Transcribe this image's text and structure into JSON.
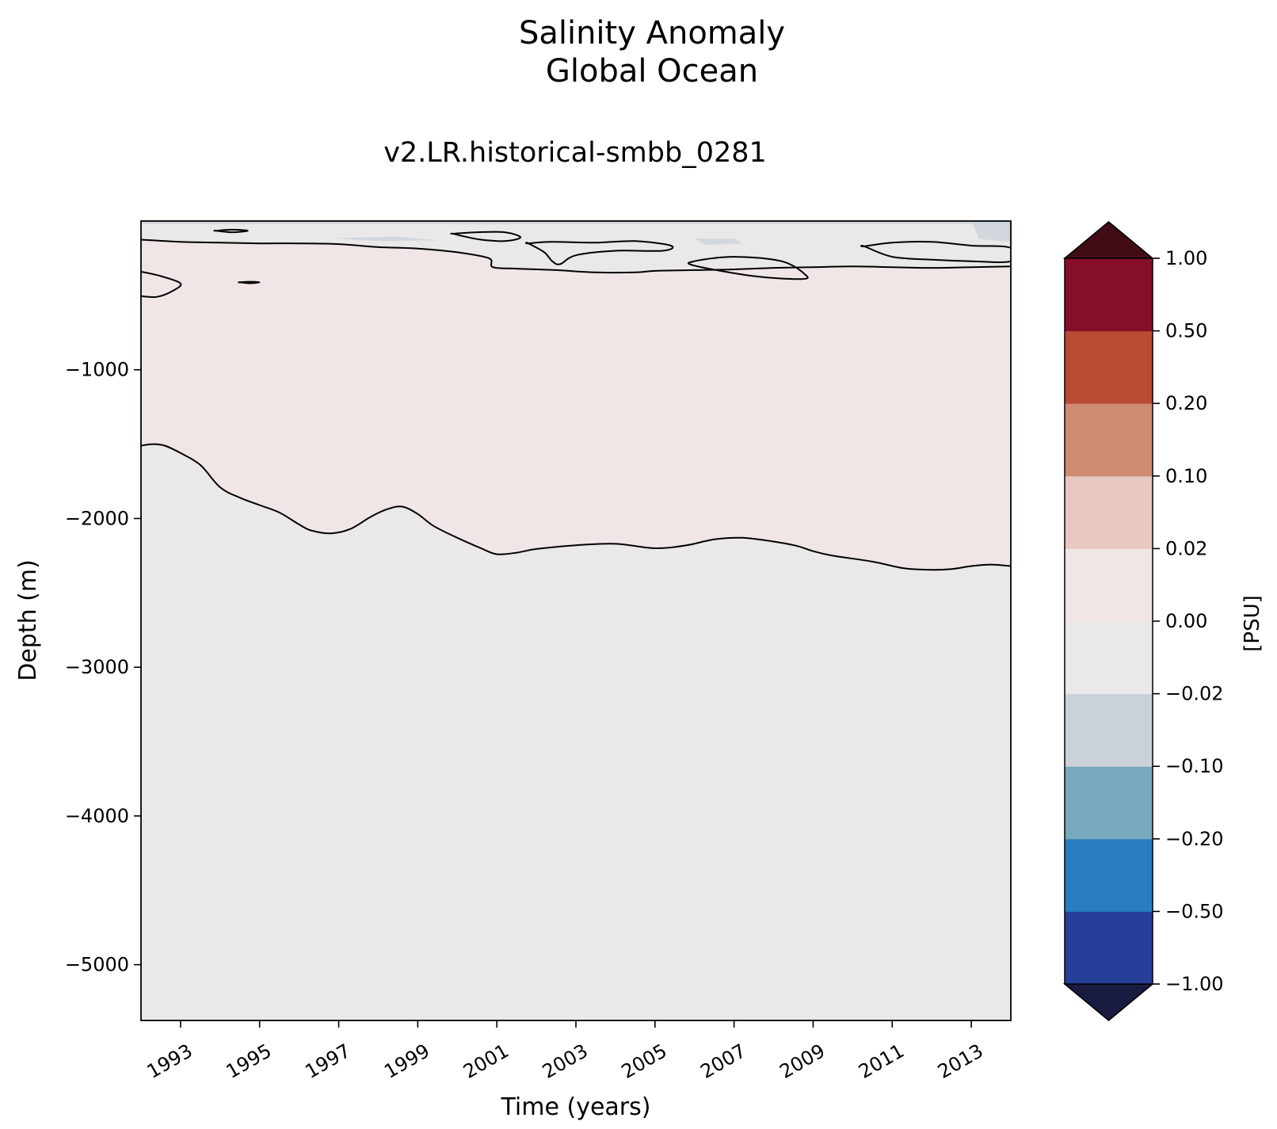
{
  "chart_data": {
    "type": "heatmap",
    "title_line1": "Salinity Anomaly",
    "title_line2": "Global Ocean",
    "subtitle": "v2.LR.historical-smbb_0281",
    "xlabel": "Time (years)",
    "ylabel": "Depth (m)",
    "xlim": [
      1992.0,
      2014.0
    ],
    "ylim": [
      -5375,
      0
    ],
    "x_ticks": [
      1993,
      1995,
      1997,
      1999,
      2001,
      2003,
      2005,
      2007,
      2009,
      2011,
      2013
    ],
    "x_tick_labels": [
      "1993",
      "1995",
      "1997",
      "1999",
      "2001",
      "2003",
      "2005",
      "2007",
      "2009",
      "2011",
      "2013"
    ],
    "y_ticks": [
      -1000,
      -2000,
      -3000,
      -4000,
      -5000
    ],
    "y_tick_labels": [
      "−1000",
      "−2000",
      "−3000",
      "−4000",
      "−5000"
    ],
    "colorbar": {
      "label": "[PSU]",
      "levels": [
        -1.0,
        -0.5,
        -0.2,
        -0.1,
        -0.02,
        0.0,
        0.02,
        0.1,
        0.2,
        0.5,
        1.0
      ],
      "tick_labels": [
        "−1.00",
        "−0.50",
        "−0.20",
        "−0.10",
        "−0.02",
        "0.00",
        "0.02",
        "0.10",
        "0.20",
        "0.50",
        "1.00"
      ],
      "colors": [
        "#283f9a",
        "#277dbd",
        "#77a9bf",
        "#cad2d9",
        "#eae8e9",
        "#f0e6e5",
        "#e7c9c2",
        "#d08c73",
        "#b84b32",
        "#860e28"
      ],
      "under_color": "#1a1b40",
      "over_color": "#420c16"
    },
    "regions": {
      "positive_band_color": "#f0e6e5",
      "negative_color": "#eae8e9",
      "near_surface_negative_color": "#cad2d9"
    },
    "zero_contour_lower": {
      "x": [
        1992.0,
        1992.3,
        1992.6,
        1993.0,
        1993.5,
        1994.0,
        1994.5,
        1995.0,
        1995.5,
        1996.0,
        1996.3,
        1996.8,
        1997.3,
        1997.8,
        1998.2,
        1998.6,
        1999.0,
        1999.4,
        2000.0,
        2000.6,
        2001.0,
        2001.5,
        2002.0,
        2003.0,
        2004.0,
        2005.0,
        2005.8,
        2006.5,
        2007.2,
        2008.0,
        2008.6,
        2009.0,
        2009.5,
        2010.5,
        2011.3,
        2012.0,
        2012.5,
        2013.0,
        2013.5,
        2014.0
      ],
      "y": [
        -1510,
        -1500,
        -1510,
        -1560,
        -1640,
        -1790,
        -1860,
        -1910,
        -1960,
        -2040,
        -2080,
        -2100,
        -2070,
        -1990,
        -1940,
        -1920,
        -1970,
        -2050,
        -2130,
        -2200,
        -2240,
        -2230,
        -2205,
        -2180,
        -2170,
        -2200,
        -2180,
        -2140,
        -2130,
        -2155,
        -2185,
        -2220,
        -2250,
        -2290,
        -2335,
        -2345,
        -2340,
        -2320,
        -2310,
        -2320
      ]
    },
    "zero_contour_upper": {
      "x": [
        1992.0,
        1993.0,
        1994.0,
        1995.0,
        1996.0,
        1997.0,
        1998.0,
        1999.0,
        2000.0,
        2000.8,
        2000.9,
        2001.5,
        2002.5,
        2003.5,
        2004.5,
        2005.0,
        2006.0,
        2007.0,
        2008.0,
        2009.0,
        2010.0,
        2011.0,
        2012.0,
        2013.0,
        2014.0
      ],
      "y": [
        -125,
        -140,
        -145,
        -150,
        -150,
        -155,
        -175,
        -185,
        -210,
        -250,
        -310,
        -320,
        -330,
        -345,
        -345,
        -335,
        -330,
        -325,
        -315,
        -310,
        -305,
        -310,
        -315,
        -310,
        -305
      ]
    },
    "closed_contours": [
      {
        "x": [
          1992.0,
          1992.5,
          1993.0,
          1992.8,
          1992.4,
          1992.0
        ],
        "y": [
          -340,
          -370,
          -420,
          -470,
          -510,
          -505
        ]
      },
      {
        "x": [
          1993.9,
          1994.3,
          1994.7,
          1994.3,
          1993.9
        ],
        "y": [
          -65,
          -58,
          -65,
          -75,
          -65
        ]
      },
      {
        "x": [
          1994.5,
          1994.75,
          1995.0,
          1994.75,
          1994.5
        ],
        "y": [
          -412,
          -408,
          -412,
          -418,
          -412
        ]
      },
      {
        "x": [
          1999.9,
          2000.5,
          2001.2,
          2001.6,
          2001.2,
          2000.6,
          2000.2,
          1999.9
        ],
        "y": [
          -85,
          -75,
          -75,
          -110,
          -135,
          -125,
          -105,
          -85
        ]
      },
      {
        "x": [
          2001.8,
          2002.4,
          2003.5,
          2004.5,
          2005.4,
          2005.2,
          2004.0,
          2003.0,
          2002.6,
          2002.4,
          2002.2,
          2001.8
        ],
        "y": [
          -150,
          -140,
          -145,
          -135,
          -165,
          -200,
          -200,
          -230,
          -290,
          -270,
          -210,
          -150
        ]
      },
      {
        "x": [
          2006.0,
          2007.0,
          2008.2,
          2008.8,
          2008.7,
          2007.5,
          2006.0
        ],
        "y": [
          -270,
          -240,
          -270,
          -360,
          -390,
          -370,
          -300
        ]
      },
      {
        "x": [
          2010.3,
          2011.0,
          2012.0,
          2013.0,
          2014.0,
          2014.0,
          2013.0,
          2012.0,
          2011.0,
          2010.3
        ],
        "y": [
          -170,
          -145,
          -140,
          -165,
          -180,
          -270,
          -270,
          -260,
          -240,
          -170
        ]
      }
    ],
    "negative_patches": [
      {
        "x": [
          1992.0,
          2014.0,
          2014.0,
          1992.0
        ],
        "y": [
          0,
          0,
          -20,
          -20
        ]
      },
      {
        "x": [
          2013.0,
          2014.0,
          2014.0,
          2013.2
        ],
        "y": [
          0,
          0,
          -140,
          -120
        ]
      },
      {
        "x": [
          1996.8,
          1998.5,
          1999.5,
          1998.0
        ],
        "y": [
          -115,
          -105,
          -130,
          -135
        ]
      },
      {
        "x": [
          2006.0,
          2007.0,
          2007.2,
          2006.3
        ],
        "y": [
          -120,
          -118,
          -150,
          -160
        ]
      }
    ]
  }
}
